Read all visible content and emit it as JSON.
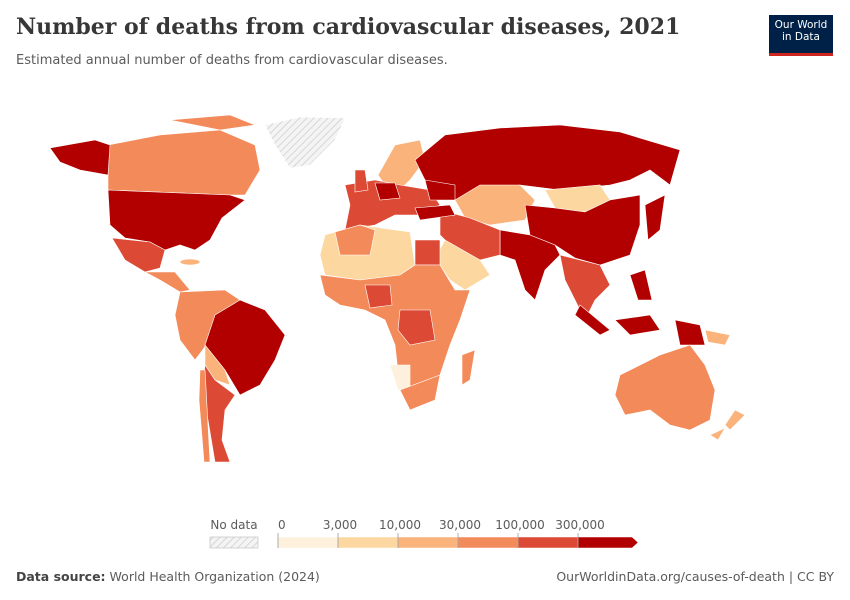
{
  "header": {
    "title": "Number of deaths from cardiovascular diseases, 2021",
    "subtitle": "Estimated annual number of deaths from cardiovascular diseases.",
    "logo": [
      "Our World",
      "in Data"
    ]
  },
  "legend": {
    "no_data": "No data",
    "bins": [
      {
        "value": 0,
        "label": "0"
      },
      {
        "value": 3000,
        "label": "3,000"
      },
      {
        "value": 10000,
        "label": "10,000"
      },
      {
        "value": 30000,
        "label": "30,000"
      },
      {
        "value": 100000,
        "label": "100,000"
      },
      {
        "value": 300000,
        "label": "300,000"
      }
    ],
    "colors": [
      "#fdf0dc",
      "#fdd7a0",
      "#fbb37c",
      "#f38a5a",
      "#dc4a35",
      "#b20000"
    ]
  },
  "footer": {
    "source_label": "Data source:",
    "source": "World Health Organization (2024)",
    "link": "OurWorldinData.org/causes-of-death | CC BY"
  }
}
